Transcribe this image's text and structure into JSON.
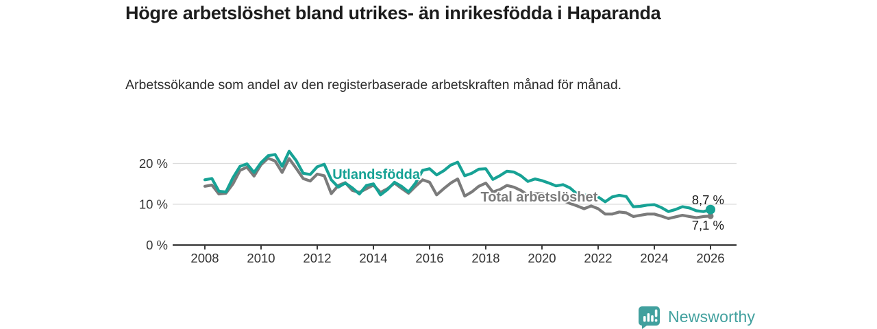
{
  "header": {
    "title": "Högre arbetslöshet bland utrikes- än inrikesfödda i Haparanda",
    "subtitle": "Arbetssökande som andel av den registerbaserade arbetskraften månad för månad."
  },
  "chart_data": {
    "type": "line",
    "x_axis": {
      "ticks": [
        2008,
        2010,
        2012,
        2014,
        2016,
        2018,
        2020,
        2022,
        2024,
        2026
      ],
      "unit": "year"
    },
    "y_axis": {
      "ticks": [
        {
          "value": 0,
          "label": "0 %"
        },
        {
          "value": 10,
          "label": "10 %"
        },
        {
          "value": 20,
          "label": "20 %"
        }
      ],
      "range": [
        0,
        25
      ],
      "grid": "horizontal-light"
    },
    "start_year": 2008,
    "step_years": 0.25,
    "series": [
      {
        "name": "Total arbetslöshet",
        "color": "#7b7b7b",
        "end_label": "7,1 %",
        "end_value": 7.1,
        "label_x_year": 2019.9,
        "label_value": 10.7,
        "values": [
          14.4,
          14.7,
          12.5,
          12.7,
          15.0,
          18.3,
          19.1,
          16.9,
          19.7,
          21.3,
          20.6,
          17.8,
          21.2,
          18.8,
          16.3,
          15.7,
          17.4,
          17.0,
          12.6,
          14.6,
          15.3,
          13.4,
          12.9,
          13.8,
          14.7,
          12.9,
          13.8,
          15.2,
          13.9,
          12.7,
          14.4,
          16.0,
          15.4,
          12.3,
          13.8,
          15.2,
          16.2,
          12.0,
          13.0,
          14.4,
          15.2,
          13.0,
          13.6,
          14.6,
          14.2,
          13.4,
          12.2,
          12.6,
          12.6,
          12.0,
          11.3,
          10.9,
          10.2,
          9.6,
          8.9,
          9.6,
          8.9,
          7.6,
          7.6,
          8.1,
          7.9,
          7.0,
          7.3,
          7.6,
          7.6,
          7.1,
          6.5,
          6.9,
          7.3,
          7.0,
          6.7,
          7.0,
          7.1
        ]
      },
      {
        "name": "Utlandsfödda",
        "color": "#17a295",
        "end_label": "8,7 %",
        "end_value": 8.7,
        "label_x_year": 2014.1,
        "label_value": 16.2,
        "values": [
          16.0,
          16.3,
          13.2,
          13.0,
          16.5,
          19.3,
          19.9,
          17.8,
          20.2,
          21.9,
          22.2,
          19.3,
          23.0,
          20.7,
          17.6,
          17.3,
          19.2,
          19.8,
          16.0,
          14.2,
          15.2,
          14.0,
          12.5,
          14.6,
          15.0,
          12.3,
          13.6,
          15.4,
          14.4,
          13.0,
          15.2,
          18.3,
          18.7,
          17.2,
          18.2,
          19.6,
          20.3,
          17.0,
          17.6,
          18.6,
          18.7,
          16.1,
          17.0,
          18.1,
          17.9,
          17.0,
          15.6,
          16.2,
          15.8,
          15.2,
          14.5,
          14.8,
          14.0,
          12.5,
          12.2,
          12.3,
          11.8,
          10.6,
          11.8,
          12.2,
          11.9,
          9.4,
          9.5,
          9.8,
          9.9,
          9.2,
          8.2,
          8.7,
          9.4,
          9.1,
          8.4,
          8.2,
          8.7
        ]
      }
    ],
    "colors": {
      "grid": "#dcdcdc",
      "axis": "#3a3a3a",
      "tick_text": "#333333",
      "end_label_text": "#1a1a1a"
    }
  },
  "branding": {
    "name": "Newsworthy",
    "color": "#41a09e"
  }
}
